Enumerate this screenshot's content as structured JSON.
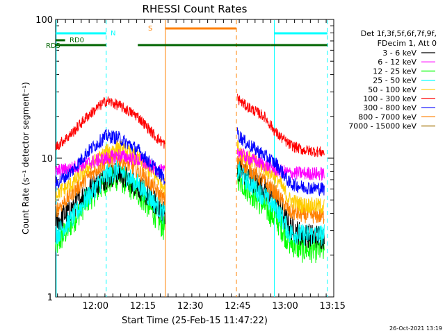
{
  "chart_data": {
    "type": "line",
    "title": "RHESSI Count Rates",
    "xlabel": "Start Time (25-Feb-15 11:47:22)",
    "ylabel": "Count Rate (s⁻¹ detector segment⁻¹)",
    "yscale": "log",
    "ylim": [
      1,
      100
    ],
    "xlim_minutes": [
      0,
      88
    ],
    "x_ticks": [
      {
        "label": "12:00",
        "min": 12.6
      },
      {
        "label": "12:15",
        "min": 27.6
      },
      {
        "label": "12:30",
        "min": 42.6
      },
      {
        "label": "12:45",
        "min": 57.6
      },
      {
        "label": "13:00",
        "min": 72.6
      },
      {
        "label": "13:15",
        "min": 87.6
      }
    ],
    "y_ticks": [
      {
        "label": "1",
        "value": 1
      },
      {
        "label": "10",
        "value": 10
      },
      {
        "label": "100",
        "value": 100
      }
    ],
    "legend_header": [
      "Det 1f,3f,5f,6f,7f,9f,",
      "FDecim 1, Att 0"
    ],
    "legend_position": "right",
    "series": [
      {
        "name": "3 - 6 keV",
        "color": "#000000",
        "x": [
          0,
          5,
          10,
          16,
          20,
          26,
          32,
          34.7,
          57.5,
          60,
          66,
          70,
          74,
          78,
          85
        ],
        "y": [
          3.4,
          4.3,
          5.8,
          7.3,
          7.8,
          6.3,
          4.6,
          4.0,
          8.5,
          7.6,
          6.0,
          4.8,
          3.2,
          2.8,
          2.7
        ]
      },
      {
        "name": "6 - 12 keV",
        "color": "#ff00ff",
        "x": [
          0,
          5,
          10,
          16,
          20,
          26,
          32,
          34.7,
          57.5,
          60,
          66,
          70,
          74,
          78,
          85
        ],
        "y": [
          8.0,
          8.5,
          9.2,
          10.0,
          10.5,
          9.7,
          8.3,
          7.9,
          11.5,
          10.2,
          9.0,
          8.2,
          7.8,
          7.8,
          7.7
        ]
      },
      {
        "name": "12 - 25 keV",
        "color": "#00ff00",
        "x": [
          0,
          5,
          10,
          16,
          20,
          26,
          32,
          34.7,
          57.5,
          60,
          66,
          70,
          74,
          78,
          85
        ],
        "y": [
          2.3,
          3.4,
          5.0,
          6.8,
          7.3,
          5.7,
          3.8,
          3.0,
          7.5,
          6.3,
          4.5,
          3.6,
          2.5,
          2.2,
          2.2
        ]
      },
      {
        "name": "25 - 50 keV",
        "color": "#00ffff",
        "x": [
          0,
          5,
          10,
          16,
          20,
          26,
          32,
          34.7,
          57.5,
          60,
          66,
          70,
          74,
          78,
          85
        ],
        "y": [
          2.8,
          3.6,
          5.2,
          7.5,
          8.2,
          6.5,
          4.6,
          3.8,
          8.2,
          7.1,
          5.3,
          4.3,
          2.9,
          2.8,
          2.8
        ]
      },
      {
        "name": "50 - 100 keV",
        "color": "#ffcc00",
        "x": [
          0,
          5,
          10,
          16,
          20,
          26,
          32,
          34.7,
          57.5,
          60,
          66,
          70,
          74,
          78,
          85
        ],
        "y": [
          5.5,
          6.5,
          8.5,
          11.0,
          12.0,
          10.0,
          7.2,
          6.2,
          12.0,
          10.3,
          8.5,
          7.2,
          5.0,
          4.6,
          4.5
        ]
      },
      {
        "name": "100 - 300 keV",
        "color": "#ff0000",
        "x": [
          0,
          5,
          10,
          16,
          20,
          26,
          32,
          34.7,
          57.5,
          60,
          66,
          70,
          74,
          78,
          85
        ],
        "y": [
          12.0,
          15.0,
          20.0,
          26.0,
          24.0,
          20.0,
          14.0,
          12.5,
          27.0,
          24.0,
          20.0,
          15.0,
          12.5,
          11.5,
          11.0
        ]
      },
      {
        "name": "300 - 800 keV",
        "color": "#0000ff",
        "x": [
          0,
          5,
          10,
          16,
          20,
          26,
          32,
          34.7,
          57.5,
          60,
          66,
          70,
          74,
          78,
          85
        ],
        "y": [
          6.5,
          8.0,
          11.0,
          14.5,
          14.0,
          11.5,
          8.2,
          7.0,
          15.0,
          13.0,
          10.5,
          9.0,
          6.6,
          6.2,
          6.0
        ]
      },
      {
        "name": "800 - 7000 keV",
        "color": "#ff8000",
        "x": [
          0,
          5,
          10,
          16,
          20,
          26,
          32,
          34.7,
          57.5,
          60,
          66,
          70,
          74,
          78,
          85
        ],
        "y": [
          4.2,
          5.5,
          7.3,
          9.5,
          10.0,
          8.2,
          5.8,
          4.9,
          10.0,
          8.8,
          6.8,
          5.5,
          4.1,
          3.9,
          3.8
        ]
      },
      {
        "name": "7000 - 15000 keV",
        "color": "#a07000",
        "x": [
          0,
          5,
          10,
          16,
          20,
          26,
          32,
          34.7,
          57.5,
          60,
          66,
          70,
          74,
          78,
          85
        ],
        "y": [
          null,
          null,
          null,
          null,
          null,
          null,
          null,
          null,
          null,
          null,
          null,
          null,
          null,
          null,
          null
        ]
      }
    ],
    "flag_bars": [
      {
        "label": "N",
        "color": "#00ffff",
        "segments": [
          [
            0,
            16
          ],
          [
            69.2,
            86
          ]
        ]
      },
      {
        "label": "S",
        "color": "#ff8000",
        "segments": [
          [
            34.7,
            57.2
          ]
        ]
      },
      {
        "label": "RD0",
        "color": "#006400",
        "segments": [
          [
            0,
            3
          ]
        ]
      },
      {
        "label": "RD5",
        "color": "#006400",
        "segments": [
          [
            0,
            16
          ],
          [
            26,
            57.2
          ],
          [
            57.2,
            68
          ],
          [
            68,
            86
          ]
        ]
      }
    ],
    "vertical_markers": [
      {
        "min": 0.2,
        "color": "#00ffff",
        "style": "solid"
      },
      {
        "min": 16.0,
        "color": "#00ffff",
        "style": "dashed"
      },
      {
        "min": 34.7,
        "color": "#ff8000",
        "style": "solid"
      },
      {
        "min": 57.2,
        "color": "#ff8000",
        "style": "dashed"
      },
      {
        "min": 69.2,
        "color": "#00ffff",
        "style": "solid"
      },
      {
        "min": 86.0,
        "color": "#00ffff",
        "style": "dashed"
      }
    ],
    "gap": [
      34.7,
      57.5
    ]
  },
  "footer_date": "26-Oct-2021 13:19"
}
